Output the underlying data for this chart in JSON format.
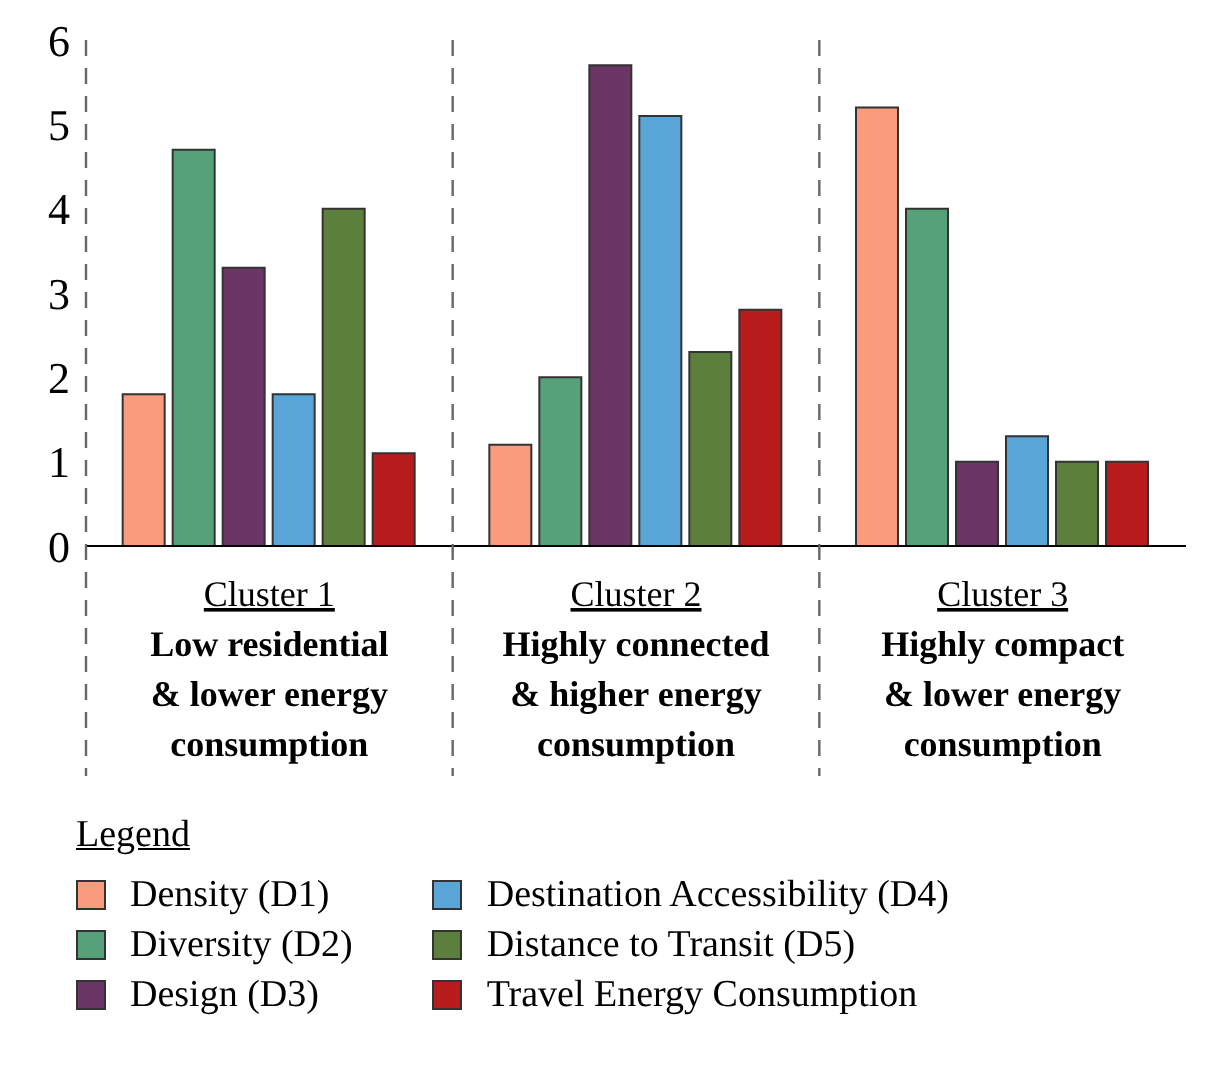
{
  "chart_data": {
    "type": "bar",
    "categories": [
      "Cluster 1\nLow residential\n& lower energy\nconsumption",
      "Cluster 2\nHighly connected\n& higher energy\nconsumption",
      "Cluster 3\nHighly compact\n& lower energy\nconsumption"
    ],
    "series": [
      {
        "name": "Density (D1)",
        "color": "#f99b7d",
        "values": [
          1.8,
          1.2,
          5.2
        ]
      },
      {
        "name": "Diversity (D2)",
        "color": "#56a07a",
        "values": [
          4.7,
          2.0,
          4.0
        ]
      },
      {
        "name": "Design (D3)",
        "color": "#6b3566",
        "values": [
          3.3,
          5.7,
          1.0
        ]
      },
      {
        "name": "Destination Accessibility (D4)",
        "color": "#5aa5d8",
        "values": [
          1.8,
          5.1,
          1.3
        ]
      },
      {
        "name": "Distance to Transit (D5)",
        "color": "#5d7f3c",
        "values": [
          4.0,
          2.3,
          1.0
        ]
      },
      {
        "name": "Travel Energy Consumption",
        "color": "#b81c1c",
        "values": [
          1.1,
          2.8,
          1.0
        ]
      }
    ],
    "ylim": [
      0,
      6
    ],
    "yticks": [
      0,
      1,
      2,
      3,
      4,
      5,
      6
    ],
    "grid": false,
    "legend": "bottom",
    "legend_title": "Legend"
  }
}
